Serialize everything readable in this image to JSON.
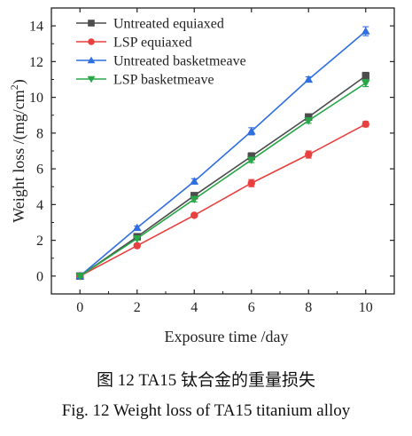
{
  "chart_data": {
    "type": "line",
    "xlabel": "Exposure time /day",
    "ylabel_main": "Weight loss /(mg/cm",
    "ylabel_sup": "2",
    "ylabel_end": ")",
    "xlim": [
      -1,
      11
    ],
    "ylim": [
      -1,
      15
    ],
    "xticks": [
      0,
      2,
      4,
      6,
      8,
      10
    ],
    "yticks": [
      0,
      2,
      4,
      6,
      8,
      10,
      12,
      14
    ],
    "grid": false,
    "legend_position": "top-left",
    "series": [
      {
        "name": "Untreated equiaxed",
        "color": "#4d4d4d",
        "marker": "square",
        "x": [
          0,
          2,
          4,
          6,
          8,
          10
        ],
        "y": [
          0,
          2.2,
          4.5,
          6.7,
          8.9,
          11.2
        ],
        "err": [
          0.08,
          0.1,
          0.15,
          0.2,
          0.15,
          0.2
        ]
      },
      {
        "name": "LSP equiaxed",
        "color": "#e8403f",
        "marker": "circle",
        "x": [
          0,
          2,
          4,
          6,
          8,
          10
        ],
        "y": [
          0,
          1.7,
          3.4,
          5.2,
          6.8,
          8.5
        ],
        "err": [
          0.08,
          0.1,
          0.1,
          0.2,
          0.2,
          0.15
        ]
      },
      {
        "name": "Untreated basketmeave",
        "color": "#2f6fe0",
        "marker": "triangle-up",
        "x": [
          0,
          2,
          4,
          6,
          8,
          10
        ],
        "y": [
          0,
          2.7,
          5.3,
          8.1,
          11.0,
          13.7
        ],
        "err": [
          0.08,
          0.1,
          0.15,
          0.2,
          0.15,
          0.25
        ]
      },
      {
        "name": "LSP basketmeave",
        "color": "#28a748",
        "marker": "triangle-down",
        "x": [
          0,
          2,
          4,
          6,
          8,
          10
        ],
        "y": [
          0,
          2.1,
          4.3,
          6.5,
          8.7,
          10.8
        ],
        "err": [
          0.08,
          0.1,
          0.15,
          0.15,
          0.15,
          0.2
        ]
      }
    ]
  },
  "caption": {
    "cn": "图 12 TA15 钛合金的重量损失",
    "en": "Fig. 12 Weight loss of TA15 titanium alloy"
  }
}
